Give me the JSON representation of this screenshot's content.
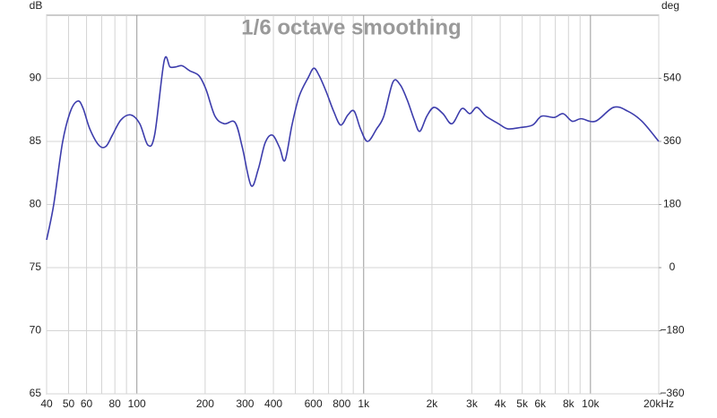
{
  "chart_data": {
    "type": "line",
    "title": "1/6 octave smoothing",
    "ylabel": "dB",
    "y2label": "deg",
    "xscale": "log",
    "grid": true,
    "xlim": [
      40,
      20000
    ],
    "xticks": [
      40,
      50,
      60,
      80,
      100,
      200,
      300,
      400,
      600,
      800,
      {
        "value": 1000,
        "label": "1k"
      },
      {
        "value": 2000,
        "label": "2k"
      },
      {
        "value": 3000,
        "label": "3k"
      },
      {
        "value": 4000,
        "label": "4k"
      },
      {
        "value": 5000,
        "label": "5k"
      },
      {
        "value": 6000,
        "label": "6k"
      },
      {
        "value": 8000,
        "label": "8k"
      },
      {
        "value": 10000,
        "label": "10k"
      },
      {
        "value": 20000,
        "label": "20kHz"
      }
    ],
    "xminor": [
      70,
      90,
      500,
      700,
      900,
      7000,
      9000
    ],
    "ylim": [
      65,
      95
    ],
    "yticks": [
      65,
      70,
      75,
      80,
      85,
      90
    ],
    "y2lim": [
      -360,
      720
    ],
    "y2ticks": [
      {
        "value": -360,
        "label": "−360"
      },
      {
        "value": -180,
        "label": "−180"
      },
      0,
      180,
      360,
      540
    ],
    "x": [
      40,
      43,
      47,
      51,
      55,
      58,
      62,
      68,
      73,
      78,
      85,
      94,
      103,
      112,
      120,
      132,
      140,
      148,
      158,
      171,
      188,
      202,
      221,
      243,
      271,
      292,
      319,
      343,
      368,
      396,
      426,
      450,
      483,
      520,
      571,
      603,
      637,
      685,
      737,
      792,
      852,
      908,
      968,
      1041,
      1141,
      1227,
      1346,
      1447,
      1555,
      1672,
      1767,
      1899,
      2041,
      2236,
      2451,
      2709,
      2938,
      3159,
      3460,
      3935,
      4310,
      4895,
      5560,
      6092,
      6918,
      7579,
      8303,
      9097,
      10522,
      12636,
      14596,
      16860,
      20000
    ],
    "series": [
      {
        "color": "#3d3dac",
        "values": [
          77.2,
          80.0,
          84.9,
          87.4,
          88.2,
          87.6,
          86.0,
          84.7,
          84.6,
          85.5,
          86.7,
          87.1,
          86.4,
          84.7,
          85.6,
          91.4,
          90.9,
          90.9,
          91.0,
          90.6,
          90.2,
          89.1,
          87.0,
          86.4,
          86.5,
          84.5,
          81.5,
          82.8,
          84.9,
          85.5,
          84.5,
          83.5,
          86.3,
          88.6,
          90.1,
          90.8,
          90.2,
          88.9,
          87.4,
          86.3,
          87.1,
          87.4,
          86.0,
          85.0,
          86.0,
          87.0,
          89.7,
          89.5,
          88.3,
          86.7,
          85.8,
          87.0,
          87.7,
          87.2,
          86.4,
          87.6,
          87.2,
          87.7,
          87.0,
          86.4,
          86.0,
          86.1,
          86.3,
          87.0,
          86.9,
          87.2,
          86.6,
          86.8,
          86.6,
          87.7,
          87.4,
          86.6,
          85.0
        ]
      }
    ]
  }
}
